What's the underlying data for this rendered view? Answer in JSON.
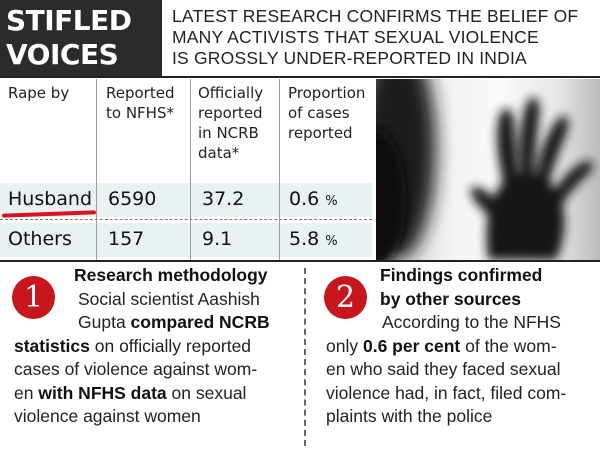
{
  "title": {
    "line1": "STIFLED",
    "line2": "VOICES"
  },
  "headline": {
    "line1": "LATEST RESEARCH CONFIRMS THE BELIEF OF",
    "line2": "MANY ACTIVISTS THAT SEXUAL VIOLENCE",
    "line3": "IS GROSSLY UNDER-REPORTED IN INDIA"
  },
  "table": {
    "headers": {
      "col1": [
        "Rape by"
      ],
      "col2": [
        "Reported",
        "to NFHS*"
      ],
      "col3": [
        "Officially",
        "reported",
        "in NCRB",
        "data*"
      ],
      "col4": [
        "Proportion",
        "of cases",
        "reported"
      ]
    },
    "rows": [
      {
        "label": "Husband",
        "nfhs": "6590",
        "ncrb": "37.2",
        "proportion": "0.6",
        "unit": "%"
      },
      {
        "label": "Others",
        "nfhs": "157",
        "ncrb": "9.1",
        "proportion": "5.8",
        "unit": "%"
      }
    ],
    "highlight_color": "#d8141c"
  },
  "sections": [
    {
      "number": "1",
      "lines": [
        [
          {
            "t": "Research methodology",
            "b": true
          }
        ],
        [
          {
            "t": "Social scientist Aashish",
            "b": false
          }
        ],
        [
          {
            "t": "Gupta ",
            "b": false
          },
          {
            "t": "compared NCRB",
            "b": true
          }
        ],
        [
          {
            "t": "statistics",
            "b": true
          },
          {
            "t": " on officially reported",
            "b": false
          }
        ],
        [
          {
            "t": "cases of violence against wom-",
            "b": false
          }
        ],
        [
          {
            "t": "en ",
            "b": false
          },
          {
            "t": "with NFHS data",
            "b": true
          },
          {
            "t": " on sexual",
            "b": false
          }
        ],
        [
          {
            "t": "violence against women",
            "b": false
          }
        ]
      ]
    },
    {
      "number": "2",
      "lines": [
        [
          {
            "t": "Findings confirmed",
            "b": true
          }
        ],
        [
          {
            "t": "by other sources",
            "b": true
          }
        ],
        [
          {
            "t": "According to the NFHS",
            "b": false
          }
        ],
        [
          {
            "t": "only ",
            "b": false
          },
          {
            "t": "0.6 per cent",
            "b": true
          },
          {
            "t": " of the wom-",
            "b": false
          }
        ],
        [
          {
            "t": "en who said they faced sexual",
            "b": false
          }
        ],
        [
          {
            "t": "violence had, in fact, filed com-",
            "b": false
          }
        ],
        [
          {
            "t": "plaints with the police",
            "b": false
          }
        ]
      ]
    }
  ],
  "colors": {
    "badge": "#c8161d",
    "title_bg": "#2b2b2b",
    "row_shade": "#e9f1f5"
  },
  "image": {
    "icon": "shadow-hand-photo"
  }
}
